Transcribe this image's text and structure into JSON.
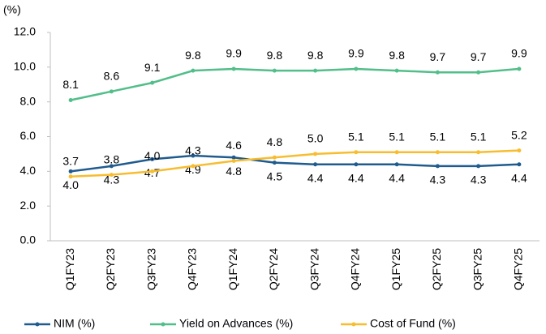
{
  "chart_data": {
    "type": "line",
    "y_label": "(%)",
    "categories": [
      "Q1FY23",
      "Q2FY23",
      "Q3FY23",
      "Q4FY23",
      "Q1FY24",
      "Q2FY24",
      "Q3FY24",
      "Q4FY24",
      "Q1FY25",
      "Q2FY25",
      "Q3FY25",
      "Q4FY25"
    ],
    "series": [
      {
        "name": "NIM (%)",
        "color": "#1f5b8e",
        "label_position": "below",
        "values": [
          4.0,
          4.3,
          4.7,
          4.9,
          4.8,
          4.5,
          4.4,
          4.4,
          4.4,
          4.3,
          4.3,
          4.4
        ],
        "value_labels": [
          "4.0",
          "4.3",
          "4.7",
          "4.9",
          "4.8",
          "4.5",
          "4.4",
          "4.4",
          "4.4",
          "4.3",
          "4.3",
          "4.4"
        ]
      },
      {
        "name": "Yield on Advances (%)",
        "color": "#52be8a",
        "label_position": "above",
        "values": [
          8.1,
          8.6,
          9.1,
          9.8,
          9.9,
          9.8,
          9.8,
          9.9,
          9.8,
          9.7,
          9.7,
          9.9
        ],
        "value_labels": [
          "8.1",
          "8.6",
          "9.1",
          "9.8",
          "9.9",
          "9.8",
          "9.8",
          "9.9",
          "9.8",
          "9.7",
          "9.7",
          "9.9"
        ]
      },
      {
        "name": "Cost of Fund (%)",
        "color": "#f7bd2f",
        "label_position": "above",
        "values": [
          3.7,
          3.8,
          4.0,
          4.3,
          4.6,
          4.8,
          5.0,
          5.1,
          5.1,
          5.1,
          5.1,
          5.2
        ],
        "value_labels": [
          "3.7",
          "3.8",
          "4.0",
          "4.3",
          "4.6",
          "4.8",
          "5.0",
          "5.1",
          "5.1",
          "5.1",
          "5.1",
          "5.2"
        ]
      }
    ],
    "ylim": [
      0,
      12
    ],
    "yticks": [
      {
        "value": 0,
        "label": "0.0"
      },
      {
        "value": 2,
        "label": "2.0"
      },
      {
        "value": 4,
        "label": "4.0"
      },
      {
        "value": 6,
        "label": "6.0"
      },
      {
        "value": 8,
        "label": "8.0"
      },
      {
        "value": 10,
        "label": "10.0"
      },
      {
        "value": 12,
        "label": "12.0"
      }
    ],
    "grid": false,
    "legend": "bottom"
  }
}
